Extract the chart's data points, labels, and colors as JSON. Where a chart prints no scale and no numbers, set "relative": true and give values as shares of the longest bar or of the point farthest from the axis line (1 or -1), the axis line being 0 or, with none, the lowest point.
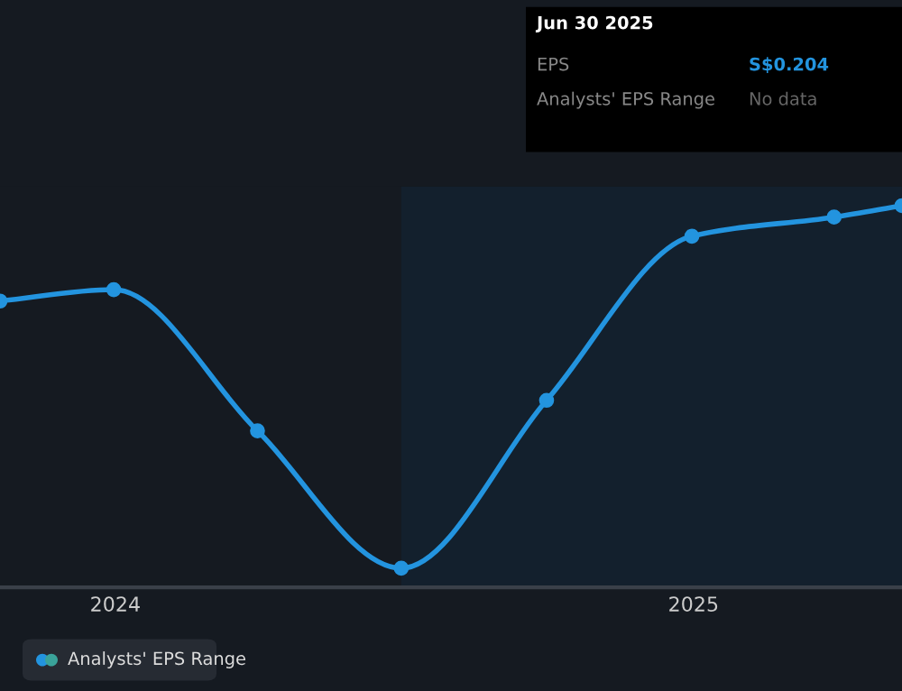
{
  "chart_data": {
    "type": "line",
    "relative": true,
    "marker": "circle",
    "line_style": "solid",
    "x": [
      "2023-10-20",
      "2023-12-31",
      "2024-03-31",
      "2024-06-30",
      "2024-09-30",
      "2024-12-31",
      "2025-03-31",
      "2025-05-13"
    ],
    "xlim": [
      "2023-10-20",
      "2025-05-13"
    ],
    "xticks": [
      {
        "value": "2024-01-01",
        "label": "2024"
      },
      {
        "value": "2025-01-01",
        "label": "2025"
      }
    ],
    "series": [
      {
        "color": "#2394df",
        "values": [
          0.75,
          0.78,
          0.41,
          0.05,
          0.49,
          0.92,
          0.97,
          1.0
        ]
      }
    ],
    "bands": [
      {
        "axis": "x",
        "from": "2024-06-30",
        "to": "2025-05-13",
        "color": "#13202d"
      }
    ],
    "annotations": [
      "Jun 30 2025",
      "EPS",
      "S$0.204",
      "Analysts' EPS Range",
      "No data",
      "Analysts' EPS Range"
    ]
  }
}
